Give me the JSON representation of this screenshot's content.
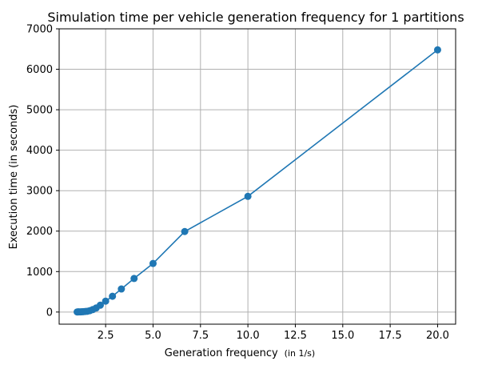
{
  "chart_data": {
    "type": "line",
    "title": "Simulation time per vehicle generation frequency for 1 partitions",
    "xlabel": "Generation frequency",
    "xlabel_unit": "(in 1/s)",
    "ylabel": "Execution time (in seconds)",
    "xlim": [
      0.05,
      20.95
    ],
    "ylim": [
      -300,
      7000
    ],
    "xticks": [
      2.5,
      5.0,
      7.5,
      10.0,
      12.5,
      15.0,
      17.5,
      20.0
    ],
    "xtick_labels": [
      "2.5",
      "5.0",
      "7.5",
      "10.0",
      "12.5",
      "15.0",
      "17.5",
      "20.0"
    ],
    "yticks": [
      0,
      1000,
      2000,
      3000,
      4000,
      5000,
      6000,
      7000
    ],
    "ytick_labels": [
      "0",
      "1000",
      "2000",
      "3000",
      "4000",
      "5000",
      "6000",
      "7000"
    ],
    "grid": true,
    "series": [
      {
        "color": "#1f77b4",
        "marker": "circle",
        "points": [
          {
            "x": 1.0,
            "y": 2
          },
          {
            "x": 1.05,
            "y": 3
          },
          {
            "x": 1.1,
            "y": 4
          },
          {
            "x": 1.18,
            "y": 5
          },
          {
            "x": 1.25,
            "y": 7
          },
          {
            "x": 1.33,
            "y": 10
          },
          {
            "x": 1.43,
            "y": 14
          },
          {
            "x": 1.54,
            "y": 20
          },
          {
            "x": 1.67,
            "y": 35
          },
          {
            "x": 1.82,
            "y": 60
          },
          {
            "x": 2.0,
            "y": 100
          },
          {
            "x": 2.22,
            "y": 170
          },
          {
            "x": 2.5,
            "y": 270
          },
          {
            "x": 2.86,
            "y": 390
          },
          {
            "x": 3.33,
            "y": 570
          },
          {
            "x": 4.0,
            "y": 830
          },
          {
            "x": 5.0,
            "y": 1200
          },
          {
            "x": 6.67,
            "y": 1990
          },
          {
            "x": 10.0,
            "y": 2860
          },
          {
            "x": 20.0,
            "y": 6480
          }
        ]
      }
    ]
  }
}
